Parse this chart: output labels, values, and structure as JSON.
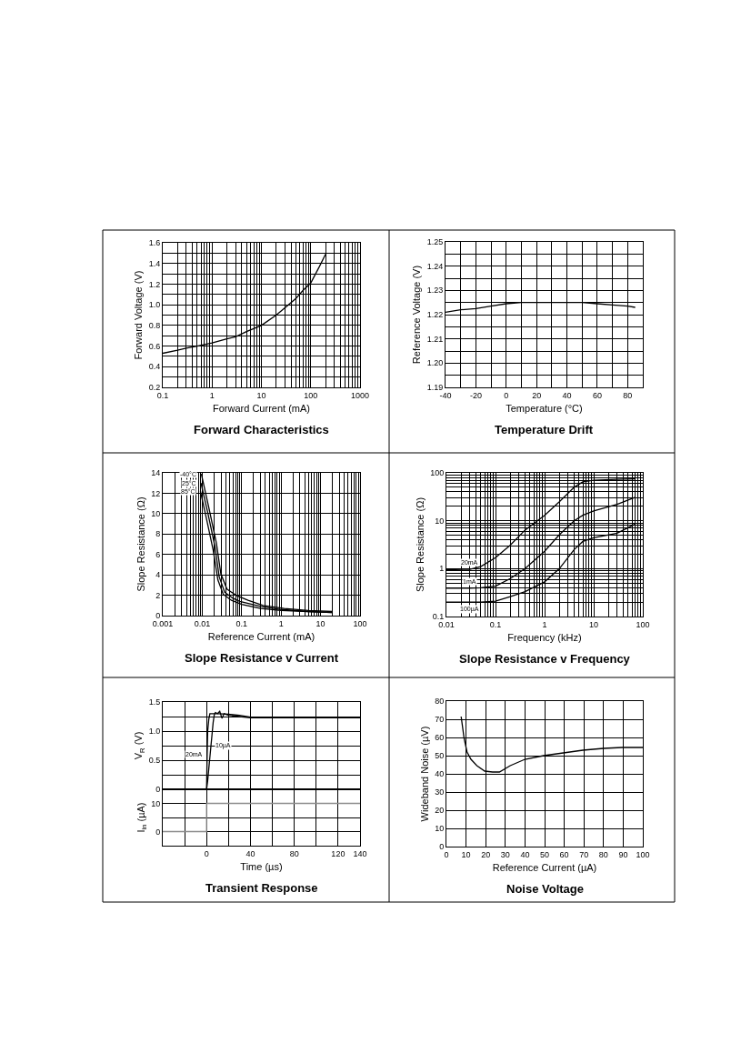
{
  "chart_data": [
    {
      "type": "line",
      "title": "Forward Characteristics",
      "xlabel": "Forward Current (mA)",
      "ylabel": "Forward Voltage (V)",
      "log": "x",
      "grid": true,
      "xlim": [
        0.1,
        1000
      ],
      "xticks": [
        0.1,
        1,
        10,
        100,
        1000
      ],
      "ylim": [
        0.2,
        1.6
      ],
      "yticks": [
        0.2,
        {
          "value": 0.3,
          "label": null
        },
        0.4,
        {
          "value": 0.5,
          "label": null
        },
        0.6,
        {
          "value": 0.7,
          "label": null
        },
        0.8,
        {
          "value": 0.9,
          "label": null
        },
        {
          "value": 1.0,
          "label": "1.0"
        },
        {
          "value": 1.1,
          "label": null
        },
        1.2,
        {
          "value": 1.3,
          "label": null
        },
        1.4,
        {
          "value": 1.5,
          "label": null
        },
        1.6
      ],
      "x": [
        0.1,
        0.2,
        0.3,
        0.5,
        1,
        2,
        3,
        5,
        10,
        20,
        30,
        50,
        70,
        100,
        150,
        200
      ],
      "series": [
        {
          "color": "#000000",
          "values": [
            0.53,
            0.56,
            0.58,
            0.6,
            0.63,
            0.67,
            0.69,
            0.74,
            0.8,
            0.9,
            0.97,
            1.06,
            1.14,
            1.21,
            1.37,
            1.49
          ]
        }
      ]
    },
    {
      "type": "line",
      "title": "Temperature Drift",
      "xlabel": "Temperature (°C)",
      "ylabel": "Reference Voltage (V)",
      "grid": true,
      "xlim": [
        -40,
        90
      ],
      "xticks": [
        -40,
        {
          "value": -30,
          "label": null
        },
        -20,
        {
          "value": -10,
          "label": null
        },
        0,
        {
          "value": 10,
          "label": null
        },
        20,
        {
          "value": 30,
          "label": null
        },
        40,
        {
          "value": 50,
          "label": null
        },
        60,
        {
          "value": 70,
          "label": null
        },
        80
      ],
      "ylim": [
        1.19,
        1.25
      ],
      "yticks": [
        1.19,
        {
          "value": 1.195,
          "label": null
        },
        {
          "value": 1.2,
          "label": "1.20"
        },
        {
          "value": 1.205,
          "label": null
        },
        1.21,
        {
          "value": 1.215,
          "label": null
        },
        1.22,
        {
          "value": 1.225,
          "label": null
        },
        1.23,
        {
          "value": 1.235,
          "label": null
        },
        1.24,
        {
          "value": 1.245,
          "label": null
        },
        1.25
      ],
      "x": [
        -40,
        -30,
        -20,
        -10,
        0,
        10,
        20,
        30,
        40,
        50,
        60,
        70,
        80,
        85
      ],
      "series": [
        {
          "color": "#000000",
          "values": [
            1.221,
            1.222,
            1.2225,
            1.2235,
            1.2245,
            1.225,
            1.225,
            1.225,
            1.225,
            1.225,
            1.2245,
            1.224,
            1.2235,
            1.223
          ]
        }
      ]
    },
    {
      "type": "line",
      "title": "Slope Resistance v Current",
      "xlabel": "Reference Current (mA)",
      "ylabel": "Slope Resistance (Ω)",
      "log": "x",
      "grid": true,
      "xlim": [
        0.001,
        100
      ],
      "xticks": [
        0.001,
        0.01,
        0.1,
        1,
        10,
        100
      ],
      "ylim": [
        0,
        14
      ],
      "yticks": [
        0,
        2,
        4,
        6,
        8,
        10,
        12,
        14
      ],
      "series": [
        {
          "name": "-40°C",
          "color": "#000000",
          "x": [
            0.0095,
            0.0147,
            0.0229,
            0.0297,
            0.0423,
            0.0716,
            0.145,
            0.35,
            1.2,
            4.9,
            20
          ],
          "values": [
            13.9,
            10.6,
            7.1,
            4.1,
            2.6,
            2.0,
            1.5,
            1.0,
            0.7,
            0.5,
            0.4
          ]
        },
        {
          "name": "25°C",
          "color": "#000000",
          "x": [
            0.0093,
            0.014,
            0.021,
            0.027,
            0.037,
            0.06,
            0.09,
            0.3,
            1.0,
            4.9,
            20
          ],
          "values": [
            13.0,
            10.0,
            6.8,
            3.8,
            2.3,
            1.7,
            1.4,
            0.9,
            0.6,
            0.4,
            0.3
          ]
        },
        {
          "name": "85°C",
          "color": "#000000",
          "x": [
            0.009,
            0.013,
            0.019,
            0.025,
            0.034,
            0.055,
            0.1,
            0.3,
            1.0,
            4.9,
            20
          ],
          "values": [
            12.2,
            9.4,
            6.4,
            3.5,
            2.1,
            1.5,
            1.1,
            0.7,
            0.5,
            0.4,
            0.3
          ]
        }
      ]
    },
    {
      "type": "line",
      "title": "Slope Resistance v Frequency",
      "xlabel": "Frequency (kHz)",
      "ylabel": "Slope Resistance (Ω)",
      "log": "xy",
      "grid": true,
      "xlim": [
        0.01,
        100
      ],
      "xticks": [
        0.01,
        0.1,
        1,
        10,
        100
      ],
      "ylim": [
        0.1,
        100
      ],
      "yticks": [
        0.1,
        1,
        10,
        100
      ],
      "x": [
        0.01,
        0.03,
        0.05,
        0.1,
        0.2,
        0.4,
        1,
        2,
        4,
        6,
        10,
        30,
        70
      ],
      "series": [
        {
          "name": "20mA",
          "color": "#000000",
          "values": [
            0.95,
            0.97,
            1.1,
            1.7,
            3.1,
            6.4,
            13,
            25,
            50,
            65,
            70,
            73,
            75
          ]
        },
        {
          "name": "1mA",
          "color": "#000000",
          "values": [
            0.39,
            0.39,
            0.4,
            0.43,
            0.62,
            1.0,
            2.3,
            5.1,
            10,
            13,
            16,
            22,
            31
          ]
        },
        {
          "name": "100µA",
          "color": "#000000",
          "values": [
            0.2,
            0.2,
            0.2,
            0.21,
            0.26,
            0.33,
            0.53,
            1.0,
            2.5,
            3.7,
            4.4,
            5.5,
            8.5
          ]
        }
      ]
    },
    {
      "type": "line",
      "ylabel": "V$_{R}$ (V)",
      "grid": true,
      "tick_labels": "y",
      "xlim": [
        -40,
        140
      ],
      "xticks": [
        {
          "value": -20,
          "label": null
        },
        0,
        {
          "value": 20,
          "label": null
        },
        40,
        {
          "value": 60,
          "label": null
        },
        80,
        {
          "value": 100,
          "label": null
        },
        120,
        140
      ],
      "ylim": [
        0,
        1.5
      ],
      "yticks": [
        0,
        {
          "value": 0.25,
          "label": null
        },
        0.5,
        {
          "value": 0.75,
          "label": null
        },
        {
          "value": 1.0,
          "label": "1.0"
        },
        {
          "value": 1.25,
          "label": null
        },
        1.5
      ],
      "series": [
        {
          "name": "10µA",
          "color": "#000000",
          "x": [
            -40,
            0,
            1,
            2,
            3,
            4,
            5,
            6,
            7,
            8,
            10,
            12,
            14,
            16,
            20,
            30,
            40,
            60,
            140
          ],
          "values": [
            0,
            0,
            0.15,
            0.35,
            0.55,
            0.75,
            0.95,
            1.15,
            1.28,
            1.32,
            1.3,
            1.34,
            1.22,
            1.3,
            1.27,
            1.25,
            1.23,
            1.23,
            1.23
          ]
        },
        {
          "name": "20mA",
          "color": "#000000",
          "x": [
            -40,
            0,
            0.5,
            1,
            2,
            3,
            5,
            10,
            20,
            30,
            40,
            60,
            140
          ],
          "values": [
            0,
            0,
            0.6,
            1.0,
            1.2,
            1.3,
            1.3,
            1.3,
            1.29,
            1.27,
            1.24,
            1.23,
            1.23
          ]
        }
      ]
    },
    {
      "type": "line",
      "title": "Transient Response",
      "xlabel": "Time (µs)",
      "ylabel": "I$_{in}$ (µA)",
      "grid": true,
      "xlim": [
        -40,
        140
      ],
      "xticks": [
        {
          "value": -20,
          "label": null
        },
        0,
        {
          "value": 20,
          "label": null
        },
        40,
        {
          "value": 60,
          "label": null
        },
        80,
        {
          "value": 100,
          "label": null
        },
        120,
        140
      ],
      "ylim": [
        -5,
        15
      ],
      "yticks": [
        0,
        {
          "value": 5,
          "label": null
        },
        10
      ],
      "x": [
        -40,
        0,
        0,
        140
      ],
      "series": [
        {
          "color": "#8c8c8c",
          "values": [
            0,
            0,
            10,
            10
          ]
        }
      ]
    },
    {
      "type": "line",
      "title": "Noise Voltage",
      "xlabel": "Reference Current (µA)",
      "ylabel": "Wideband Noise (µV)",
      "grid": true,
      "xlim": [
        0,
        100
      ],
      "xticks": [
        0,
        10,
        20,
        30,
        40,
        50,
        60,
        70,
        80,
        90,
        100
      ],
      "ylim": [
        0,
        80
      ],
      "yticks": [
        0,
        10,
        20,
        30,
        40,
        50,
        60,
        70,
        80
      ],
      "x": [
        7.5,
        9,
        10.5,
        12.5,
        15.5,
        19.5,
        23.5,
        27,
        32.5,
        40,
        49.5,
        59.5,
        69.5,
        80,
        89.5,
        100
      ],
      "series": [
        {
          "color": "#000000",
          "values": [
            71.5,
            59.5,
            52,
            48,
            44.5,
            41.5,
            41,
            41,
            44.5,
            48,
            50,
            51.5,
            53,
            54,
            54.5,
            54.5
          ]
        }
      ]
    }
  ]
}
